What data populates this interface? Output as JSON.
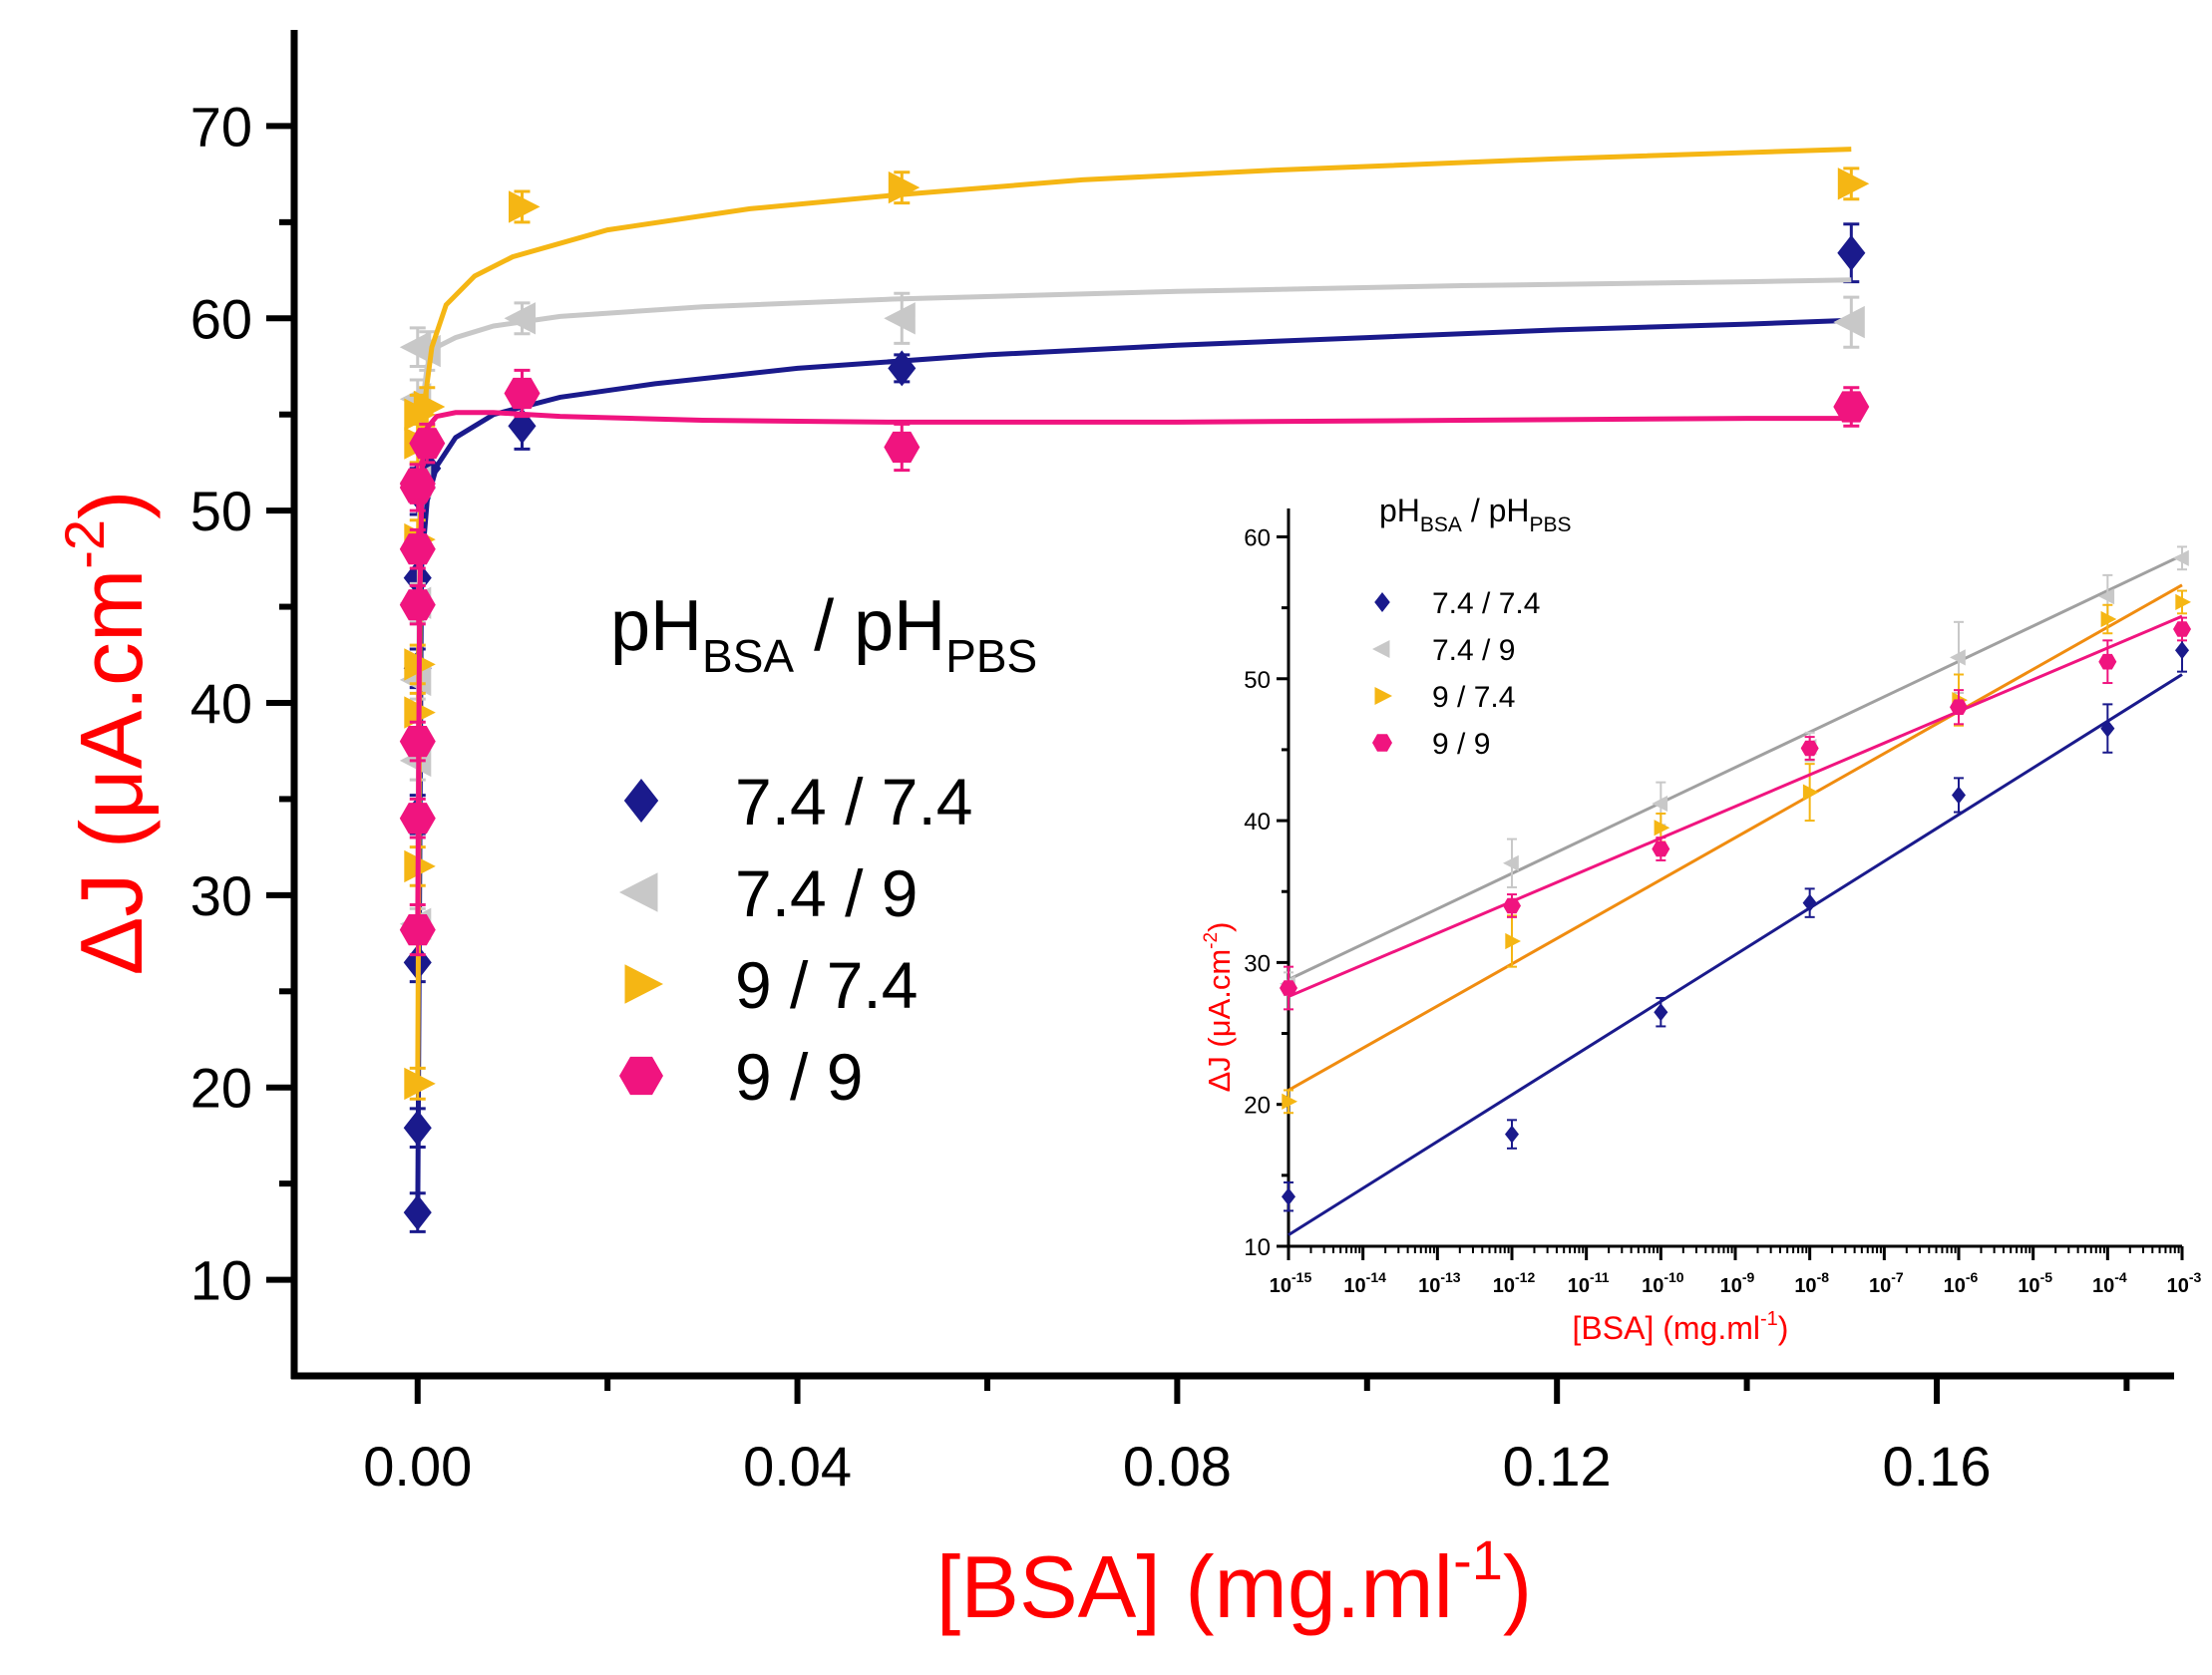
{
  "chart_data": [
    {
      "type": "scatter",
      "role": "main",
      "xlabel": "[BSA] (mg.ml",
      "xlabel_sup": "-1",
      "xlabel_end": ")",
      "ylabel": "ΔJ (μA.cm",
      "ylabel_sup": "-2",
      "ylabel_end": ")",
      "xlim": [
        -0.013,
        0.185
      ],
      "ylim": [
        5,
        75
      ],
      "xticks": [
        0.0,
        0.04,
        0.08,
        0.12,
        0.16
      ],
      "xtick_labels": [
        "0.00",
        "0.04",
        "0.08",
        "0.12",
        "0.16"
      ],
      "xticks_minor": [
        0.02,
        0.06,
        0.1,
        0.14,
        0.18
      ],
      "yticks": [
        10,
        20,
        30,
        40,
        50,
        60,
        70
      ],
      "ytick_labels": [
        "10",
        "20",
        "30",
        "40",
        "50",
        "60",
        "70"
      ],
      "yticks_minor": [
        15,
        25,
        35,
        45,
        55,
        65
      ],
      "legend_title": "pH",
      "legend_title_sub1": "BSA",
      "legend_title_mid": " / pH",
      "legend_title_sub2": "PBS",
      "legend_position": "center",
      "series": [
        {
          "name": "7.4 / 7.4",
          "color": "#1a1a8c",
          "marker": "diamond",
          "x": [
            0.0,
            0.0,
            0.0,
            0.0,
            0.0,
            0.0,
            0.0,
            0.001,
            0.011,
            0.051,
            0.151
          ],
          "y": [
            13.5,
            17.9,
            26.5,
            34.2,
            41.8,
            46.5,
            51.0,
            52.2,
            54.4,
            57.4,
            63.4
          ],
          "err": [
            1.0,
            1.0,
            1.0,
            1.0,
            1.0,
            1.5,
            1.2,
            1.0,
            1.2,
            0.7,
            1.5
          ],
          "fit_x": [
            0.0,
            0.0004,
            0.001,
            0.002,
            0.004,
            0.008,
            0.015,
            0.025,
            0.04,
            0.06,
            0.08,
            0.1,
            0.12,
            0.14,
            0.151
          ],
          "fit_y": [
            13,
            47,
            50.5,
            52.3,
            53.8,
            55.0,
            55.9,
            56.6,
            57.4,
            58.1,
            58.6,
            59.0,
            59.4,
            59.7,
            59.9
          ]
        },
        {
          "name": "7.4 / 9",
          "color": "#c8c8c8",
          "marker": "triangle-left",
          "x": [
            0.0,
            0.0,
            0.0,
            0.0,
            0.0,
            0.0,
            0.0,
            0.001,
            0.011,
            0.051,
            0.151
          ],
          "y": [
            28.5,
            37.0,
            41.2,
            45.2,
            51.5,
            55.8,
            58.5,
            58.3,
            60.0,
            60.0,
            59.8
          ],
          "err": [
            0.8,
            1.0,
            1.0,
            1.0,
            1.0,
            1.0,
            1.0,
            1.0,
            0.8,
            1.3,
            1.3
          ],
          "fit_x": [
            0.0,
            0.0002,
            0.0005,
            0.001,
            0.002,
            0.004,
            0.008,
            0.015,
            0.03,
            0.05,
            0.08,
            0.11,
            0.14,
            0.151
          ],
          "fit_y": [
            28.5,
            50,
            55.5,
            57.5,
            58.5,
            59.0,
            59.6,
            60.1,
            60.6,
            61.0,
            61.4,
            61.7,
            61.9,
            62.0
          ]
        },
        {
          "name": "9 / 7.4",
          "color": "#f5b614",
          "marker": "triangle-right",
          "x": [
            0.0,
            0.0,
            0.0,
            0.0,
            0.0,
            0.0,
            0.0,
            0.001,
            0.011,
            0.051,
            0.151
          ],
          "y": [
            20.2,
            31.5,
            39.5,
            42.0,
            48.5,
            55.0,
            53.5,
            55.4,
            65.8,
            66.8,
            67.0
          ],
          "err": [
            0.8,
            1.0,
            1.0,
            1.0,
            1.0,
            1.0,
            1.0,
            1.0,
            0.8,
            0.8,
            0.8
          ],
          "fit_x": [
            0.0,
            0.0003,
            0.0007,
            0.0015,
            0.003,
            0.006,
            0.01,
            0.02,
            0.035,
            0.05,
            0.07,
            0.09,
            0.12,
            0.151
          ],
          "fit_y": [
            20.2,
            50,
            55.5,
            58.5,
            60.7,
            62.2,
            63.2,
            64.6,
            65.7,
            66.4,
            67.2,
            67.7,
            68.3,
            68.8
          ]
        },
        {
          "name": "9 / 9",
          "color": "#f0147f",
          "marker": "hexagon",
          "x": [
            0.0,
            0.0,
            0.0,
            0.0,
            0.0,
            0.0,
            0.0,
            0.001,
            0.011,
            0.051,
            0.151
          ],
          "y": [
            28.2,
            34.0,
            38.0,
            45.1,
            48.0,
            51.2,
            51.4,
            53.5,
            56.1,
            53.3,
            55.4
          ],
          "err": [
            1.3,
            1.0,
            1.0,
            1.0,
            1.0,
            1.2,
            1.0,
            1.0,
            1.2,
            1.2,
            1.0
          ],
          "fit_x": [
            0.0,
            0.0002,
            0.0005,
            0.001,
            0.002,
            0.004,
            0.008,
            0.015,
            0.03,
            0.05,
            0.08,
            0.11,
            0.14,
            0.151
          ],
          "fit_y": [
            28.0,
            45,
            52.5,
            54.3,
            54.9,
            55.1,
            55.1,
            54.9,
            54.7,
            54.6,
            54.6,
            54.7,
            54.8,
            54.8
          ]
        }
      ]
    },
    {
      "type": "scatter",
      "role": "inset",
      "xscale": "log",
      "xlabel": "[BSA]  (mg.ml",
      "xlabel_sup": "-1",
      "xlabel_end": ")",
      "ylabel": "ΔJ (μA.cm",
      "ylabel_sup": "-2",
      "ylabel_end": ")",
      "xlim_exp": [
        -15,
        -3
      ],
      "ylim": [
        10,
        62
      ],
      "xticks_exp": [
        -15,
        -14,
        -13,
        -12,
        -11,
        -10,
        -9,
        -8,
        -7,
        -6,
        -5,
        -4,
        -3
      ],
      "xtick_base": "10",
      "xtick_exps": [
        "-15",
        "-14",
        "-13",
        "-12",
        "-11",
        "-10",
        "-9",
        "-8",
        "-7",
        "-6",
        "-5",
        "-4",
        "-3"
      ],
      "yticks": [
        10,
        20,
        30,
        40,
        50,
        60
      ],
      "ytick_labels": [
        "10",
        "20",
        "30",
        "40",
        "50",
        "60"
      ],
      "legend_title": "pH",
      "legend_title_sub1": "BSA",
      "legend_title_mid": " / pH",
      "legend_title_sub2": "PBS",
      "legend_position": "top-left",
      "series": [
        {
          "name": "7.4 / 7.4",
          "color": "#1a1a8c",
          "line_color": "#1a1a8c",
          "marker": "diamond",
          "x_exp": [
            -15,
            -12,
            -10,
            -8,
            -6,
            -4,
            -3
          ],
          "y": [
            13.5,
            17.9,
            26.5,
            34.2,
            41.8,
            46.5,
            52.0
          ],
          "err": [
            1.0,
            1.0,
            1.0,
            1.0,
            1.2,
            1.7,
            1.5
          ],
          "fit": [
            [
              -15,
              10.8
            ],
            [
              -3,
              50.3
            ]
          ]
        },
        {
          "name": "7.4 / 9",
          "color": "#c8c8c8",
          "line_color": "#a0a0a0",
          "marker": "triangle-left",
          "x_exp": [
            -15,
            -12,
            -10,
            -8,
            -6,
            -4,
            -3
          ],
          "y": [
            28.5,
            37.0,
            41.2,
            45.2,
            51.5,
            55.8,
            58.5
          ],
          "err": [
            0.8,
            1.7,
            1.5,
            1.0,
            2.5,
            1.5,
            0.8
          ],
          "fit": [
            [
              -15,
              28.8
            ],
            [
              -3,
              58.7
            ]
          ]
        },
        {
          "name": "9 / 7.4",
          "color": "#f5b614",
          "line_color": "#f08c10",
          "marker": "triangle-right",
          "x_exp": [
            -15,
            -12,
            -10,
            -8,
            -6,
            -4,
            -3
          ],
          "y": [
            20.2,
            31.5,
            39.5,
            42.0,
            48.5,
            54.2,
            55.4
          ],
          "err": [
            0.8,
            1.8,
            1.0,
            2.0,
            1.8,
            1.0,
            0.8
          ],
          "fit": [
            [
              -15,
              21.0
            ],
            [
              -3,
              56.6
            ]
          ]
        },
        {
          "name": "9 / 9",
          "color": "#f0147f",
          "line_color": "#f0147f",
          "marker": "hexagon",
          "x_exp": [
            -15,
            -12,
            -10,
            -8,
            -6,
            -4,
            -3
          ],
          "y": [
            28.2,
            34.0,
            38.0,
            45.1,
            48.0,
            51.2,
            53.5
          ],
          "err": [
            1.5,
            0.8,
            0.8,
            0.8,
            1.2,
            1.5,
            0.8
          ],
          "fit": [
            [
              -15,
              27.6
            ],
            [
              -3,
              54.4
            ]
          ]
        }
      ]
    }
  ]
}
